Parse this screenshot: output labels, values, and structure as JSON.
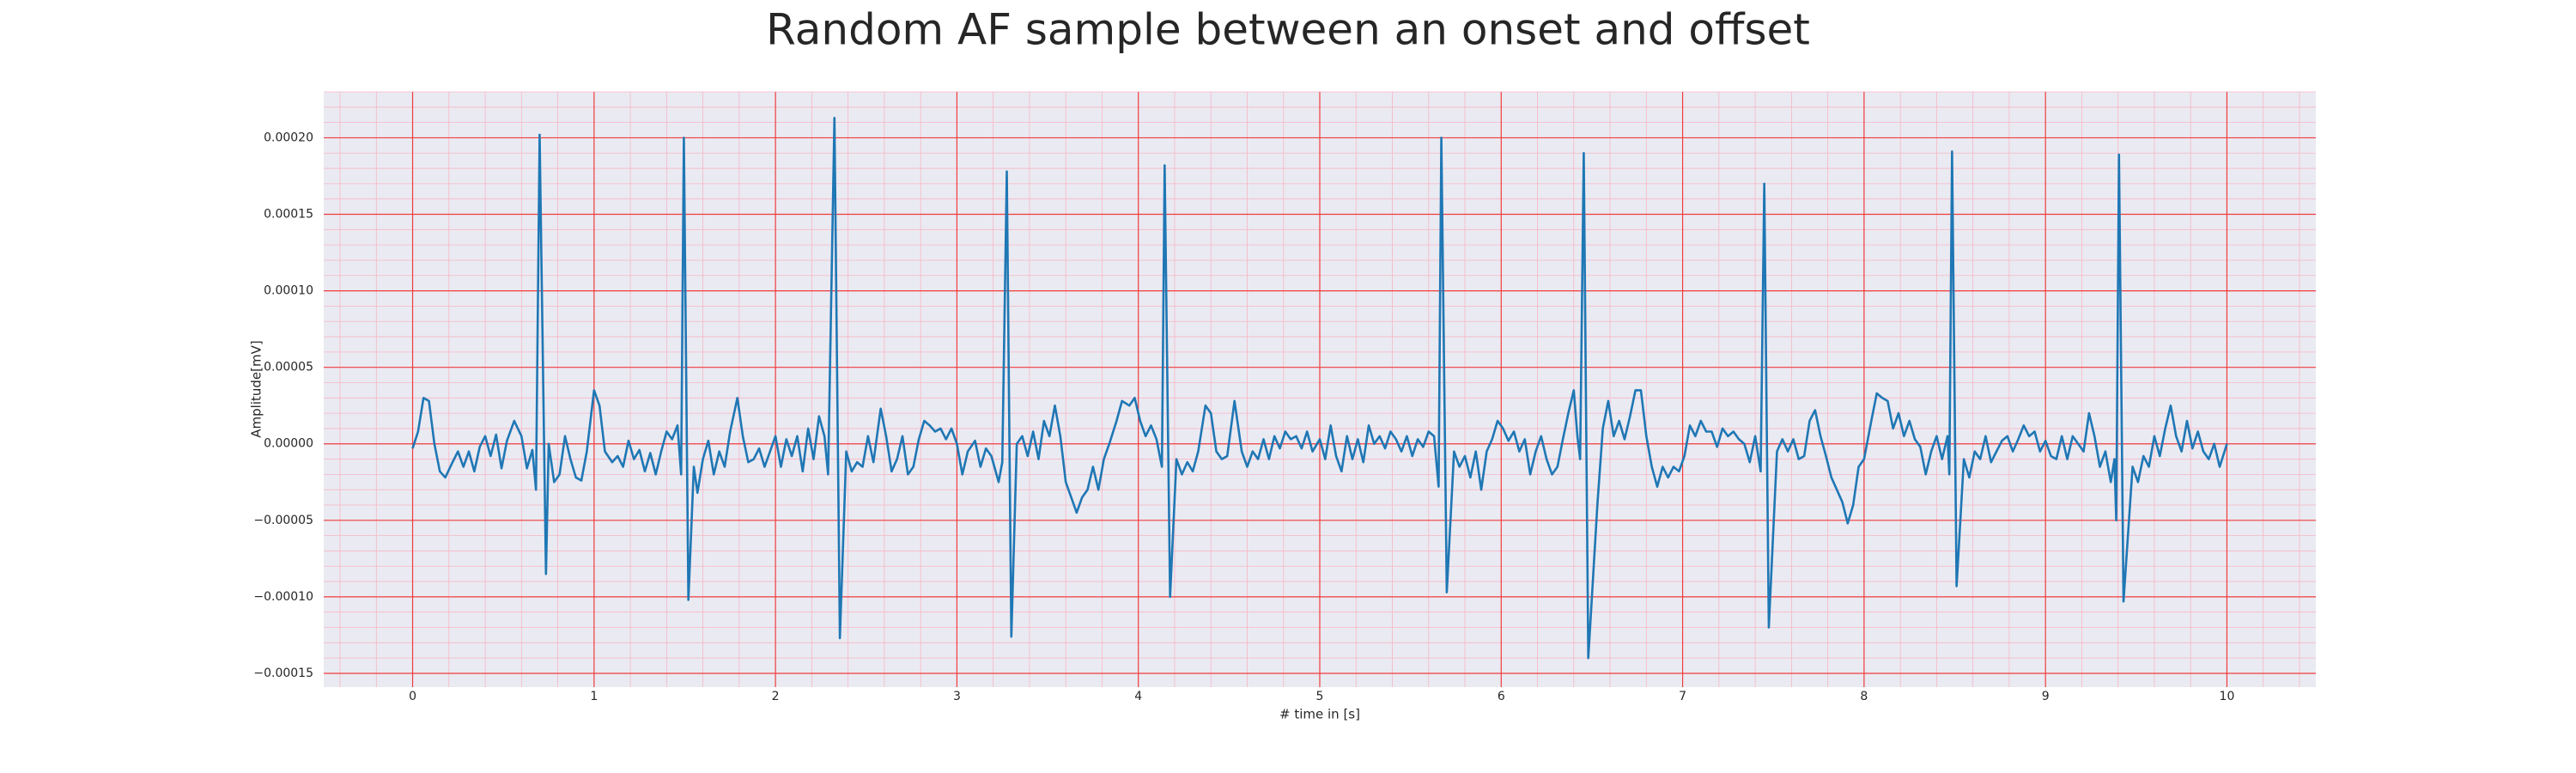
{
  "chart_data": {
    "type": "line",
    "title": "Random AF sample between an onset and offset",
    "xlabel": "# time in [s]",
    "ylabel": "Amplitude[mV]",
    "color": "#1f77b4",
    "background": "#eaeaf2",
    "grid": true,
    "grid_color": "#f03c3c",
    "minor_grid": true,
    "minor_grid_color": "#f7b6c4",
    "xlim": [
      -0.49,
      10.49
    ],
    "ylim": [
      -0.000159,
      0.00023
    ],
    "xticks": [
      0,
      1,
      2,
      3,
      4,
      5,
      6,
      7,
      8,
      9,
      10
    ],
    "yticks": [
      {
        "value": -0.00015,
        "label": "−0.00015"
      },
      {
        "value": -0.0001,
        "label": "−0.00010"
      },
      {
        "value": -5e-05,
        "label": "−0.00005"
      },
      {
        "value": 0,
        "label": "0.00000"
      },
      {
        "value": 5e-05,
        "label": "0.00005"
      },
      {
        "value": 0.0001,
        "label": "0.00010"
      },
      {
        "value": 0.00015,
        "label": "0.00015"
      },
      {
        "value": 0.0002,
        "label": "0.00020"
      }
    ],
    "x": [
      0,
      0.03,
      0.06,
      0.09,
      0.12,
      0.15,
      0.18,
      0.22,
      0.25,
      0.28,
      0.31,
      0.34,
      0.37,
      0.4,
      0.43,
      0.46,
      0.49,
      0.52,
      0.56,
      0.6,
      0.63,
      0.66,
      0.68,
      0.7,
      0.735,
      0.75,
      0.78,
      0.81,
      0.84,
      0.87,
      0.9,
      0.93,
      0.96,
      1.0,
      1.03,
      1.06,
      1.1,
      1.13,
      1.16,
      1.19,
      1.22,
      1.25,
      1.28,
      1.31,
      1.34,
      1.37,
      1.4,
      1.43,
      1.46,
      1.48,
      1.495,
      1.52,
      1.55,
      1.57,
      1.6,
      1.63,
      1.66,
      1.69,
      1.72,
      1.75,
      1.79,
      1.82,
      1.85,
      1.88,
      1.91,
      1.94,
      1.97,
      2.0,
      2.03,
      2.06,
      2.09,
      2.12,
      2.15,
      2.18,
      2.21,
      2.24,
      2.27,
      2.29,
      2.325,
      2.355,
      2.39,
      2.42,
      2.45,
      2.48,
      2.51,
      2.54,
      2.58,
      2.61,
      2.64,
      2.67,
      2.7,
      2.73,
      2.76,
      2.79,
      2.82,
      2.85,
      2.88,
      2.91,
      2.94,
      2.97,
      3.0,
      3.03,
      3.06,
      3.1,
      3.13,
      3.16,
      3.19,
      3.23,
      3.25,
      3.275,
      3.3,
      3.33,
      3.36,
      3.39,
      3.42,
      3.45,
      3.48,
      3.51,
      3.54,
      3.57,
      3.6,
      3.63,
      3.66,
      3.69,
      3.72,
      3.75,
      3.78,
      3.81,
      3.84,
      3.88,
      3.91,
      3.95,
      3.98,
      4.01,
      4.04,
      4.07,
      4.1,
      4.13,
      4.145,
      4.175,
      4.21,
      4.24,
      4.27,
      4.3,
      4.33,
      4.37,
      4.4,
      4.43,
      4.46,
      4.49,
      4.53,
      4.57,
      4.6,
      4.63,
      4.66,
      4.69,
      4.72,
      4.75,
      4.78,
      4.81,
      4.84,
      4.87,
      4.9,
      4.93,
      4.96,
      5.0,
      5.03,
      5.06,
      5.09,
      5.12,
      5.15,
      5.18,
      5.21,
      5.24,
      5.27,
      5.3,
      5.33,
      5.36,
      5.39,
      5.42,
      5.45,
      5.48,
      5.51,
      5.54,
      5.57,
      5.6,
      5.63,
      5.655,
      5.67,
      5.7,
      5.74,
      5.77,
      5.8,
      5.83,
      5.86,
      5.89,
      5.92,
      5.95,
      5.98,
      6.01,
      6.04,
      6.07,
      6.1,
      6.13,
      6.16,
      6.19,
      6.22,
      6.25,
      6.28,
      6.31,
      6.34,
      6.37,
      6.4,
      6.42,
      6.435,
      6.455,
      6.48,
      6.53,
      6.56,
      6.59,
      6.62,
      6.65,
      6.68,
      6.71,
      6.74,
      6.77,
      6.8,
      6.83,
      6.86,
      6.89,
      6.92,
      6.95,
      6.98,
      7.01,
      7.04,
      7.07,
      7.1,
      7.13,
      7.16,
      7.19,
      7.22,
      7.25,
      7.28,
      7.31,
      7.34,
      7.37,
      7.4,
      7.43,
      7.45,
      7.475,
      7.52,
      7.55,
      7.58,
      7.61,
      7.64,
      7.67,
      7.7,
      7.73,
      7.76,
      7.79,
      7.82,
      7.85,
      7.88,
      7.91,
      7.94,
      7.97,
      8.0,
      8.04,
      8.07,
      8.1,
      8.13,
      8.16,
      8.19,
      8.22,
      8.25,
      8.28,
      8.31,
      8.34,
      8.37,
      8.4,
      8.43,
      8.46,
      8.47,
      8.485,
      8.51,
      8.55,
      8.58,
      8.61,
      8.64,
      8.67,
      8.7,
      8.73,
      8.76,
      8.79,
      8.82,
      8.85,
      8.88,
      8.91,
      8.94,
      8.97,
      9.0,
      9.03,
      9.06,
      9.09,
      9.12,
      9.15,
      9.18,
      9.21,
      9.24,
      9.27,
      9.3,
      9.33,
      9.36,
      9.38,
      9.39,
      9.405,
      9.43,
      9.48,
      9.51,
      9.54,
      9.57,
      9.6,
      9.63,
      9.66,
      9.69,
      9.72,
      9.75,
      9.78,
      9.81,
      9.84,
      9.87,
      9.9,
      9.93,
      9.96,
      10.0
    ],
    "values": [
      -3e-06,
      8e-06,
      3e-05,
      2.8e-05,
      0,
      -1.8e-05,
      -2.2e-05,
      -1.2e-05,
      -5e-06,
      -1.5e-05,
      -5e-06,
      -1.8e-05,
      -2e-06,
      5e-06,
      -8e-06,
      6e-06,
      -1.6e-05,
      2e-06,
      1.5e-05,
      5e-06,
      -1.6e-05,
      -4e-06,
      -3e-05,
      0.000202,
      -8.5e-05,
      0,
      -2.5e-05,
      -2e-05,
      5e-06,
      -1e-05,
      -2.2e-05,
      -2.4e-05,
      -5e-06,
      3.5e-05,
      2.5e-05,
      -5e-06,
      -1.2e-05,
      -8e-06,
      -1.5e-05,
      2e-06,
      -1e-05,
      -4e-06,
      -1.8e-05,
      -6e-06,
      -2e-05,
      -5e-06,
      8e-06,
      3e-06,
      1.2e-05,
      -2e-05,
      0.0002,
      -0.000102,
      -1.5e-05,
      -3.2e-05,
      -1e-05,
      2e-06,
      -2e-05,
      -5e-06,
      -1.5e-05,
      8e-06,
      3e-05,
      5e-06,
      -1.2e-05,
      -1e-05,
      -3e-06,
      -1.5e-05,
      -5e-06,
      5e-06,
      -1.5e-05,
      3e-06,
      -8e-06,
      5e-06,
      -1.8e-05,
      1e-05,
      -1e-05,
      1.8e-05,
      5e-06,
      -2e-05,
      0.000213,
      -0.000127,
      -5e-06,
      -1.8e-05,
      -1.2e-05,
      -1.5e-05,
      5e-06,
      -1.2e-05,
      2.3e-05,
      5e-06,
      -1.8e-05,
      -1e-05,
      5e-06,
      -2e-05,
      -1.5e-05,
      3e-06,
      1.5e-05,
      1.2e-05,
      8e-06,
      1e-05,
      3e-06,
      1e-05,
      0,
      -2e-05,
      -5e-06,
      2e-06,
      -1.5e-05,
      -3e-06,
      -8e-06,
      -2.5e-05,
      -1.2e-05,
      0.000178,
      -0.000126,
      0,
      5e-06,
      -8e-06,
      8e-06,
      -1e-05,
      1.5e-05,
      5e-06,
      2.5e-05,
      5e-06,
      -2.5e-05,
      -3.5e-05,
      -4.5e-05,
      -3.5e-05,
      -3e-05,
      -1.5e-05,
      -3e-05,
      -1e-05,
      0,
      1.5e-05,
      2.8e-05,
      2.5e-05,
      3e-05,
      1.5e-05,
      5e-06,
      1.2e-05,
      3e-06,
      -1.5e-05,
      0.000182,
      -0.0001,
      -1e-05,
      -2e-05,
      -1.2e-05,
      -1.8e-05,
      -5e-06,
      2.5e-05,
      2e-05,
      -5e-06,
      -1e-05,
      -8e-06,
      2.8e-05,
      -5e-06,
      -1.5e-05,
      -5e-06,
      -1e-05,
      3e-06,
      -1e-05,
      5e-06,
      -3e-06,
      8e-06,
      3e-06,
      5e-06,
      -3e-06,
      8e-06,
      -5e-06,
      3e-06,
      -1e-05,
      1.2e-05,
      -8e-06,
      -1.8e-05,
      5e-06,
      -1e-05,
      3e-06,
      -1.2e-05,
      1.2e-05,
      0,
      5e-06,
      -3e-06,
      8e-06,
      3e-06,
      -5e-06,
      5e-06,
      -8e-06,
      3e-06,
      -2e-06,
      8e-06,
      5e-06,
      -2.8e-05,
      0.0002,
      -9.7e-05,
      -5e-06,
      -1.5e-05,
      -8e-06,
      -2.2e-05,
      -5e-06,
      -3e-05,
      -5e-06,
      3e-06,
      1.5e-05,
      1e-05,
      2e-06,
      8e-06,
      -5e-06,
      3e-06,
      -2e-05,
      -5e-06,
      5e-06,
      -1e-05,
      -2e-05,
      -1.5e-05,
      3e-06,
      2e-05,
      3.5e-05,
      5e-06,
      -1e-05,
      0.00019,
      -0.00014,
      -4e-05,
      1e-05,
      2.8e-05,
      5e-06,
      1.5e-05,
      3e-06,
      1.8e-05,
      3.5e-05,
      3.5e-05,
      5e-06,
      -1.5e-05,
      -2.8e-05,
      -1.5e-05,
      -2.2e-05,
      -1.5e-05,
      -1.8e-05,
      -8e-06,
      1.2e-05,
      5e-06,
      1.5e-05,
      8e-06,
      8e-06,
      -2e-06,
      1e-05,
      5e-06,
      8e-06,
      3e-06,
      0,
      -1.2e-05,
      5e-06,
      -1.8e-05,
      0.00017,
      -0.00012,
      -5e-06,
      3e-06,
      -5e-06,
      3e-06,
      -1e-05,
      -8e-06,
      1.5e-05,
      2.2e-05,
      5e-06,
      -8e-06,
      -2.2e-05,
      -3e-05,
      -3.8e-05,
      -5.2e-05,
      -4e-05,
      -1.5e-05,
      -1e-05,
      1.5e-05,
      3.3e-05,
      3e-05,
      2.8e-05,
      1e-05,
      2e-05,
      5e-06,
      1.5e-05,
      3e-06,
      -2e-06,
      -2e-05,
      -5e-06,
      5e-06,
      -1e-05,
      5e-06,
      -2e-05,
      0.000191,
      -9.3e-05,
      -1e-05,
      -2.2e-05,
      -5e-06,
      -1e-05,
      5e-06,
      -1.2e-05,
      -5e-06,
      2e-06,
      5e-06,
      -5e-06,
      3e-06,
      1.2e-05,
      5e-06,
      8e-06,
      -5e-06,
      2e-06,
      -8e-06,
      -1e-05,
      5e-06,
      -1e-05,
      5e-06,
      0,
      -5e-06,
      2e-05,
      5e-06,
      -1.5e-05,
      -5e-06,
      -2.5e-05,
      -1e-05,
      -5e-05,
      0.000189,
      -0.000103,
      -1.5e-05,
      -2.5e-05,
      -8e-06,
      -1.5e-05,
      5e-06,
      -8e-06,
      1e-05,
      2.5e-05,
      5e-06,
      -5e-06,
      1.5e-05,
      -3e-06,
      8e-06,
      -5e-06,
      -1e-05,
      0,
      -1.5e-05,
      0
    ]
  }
}
